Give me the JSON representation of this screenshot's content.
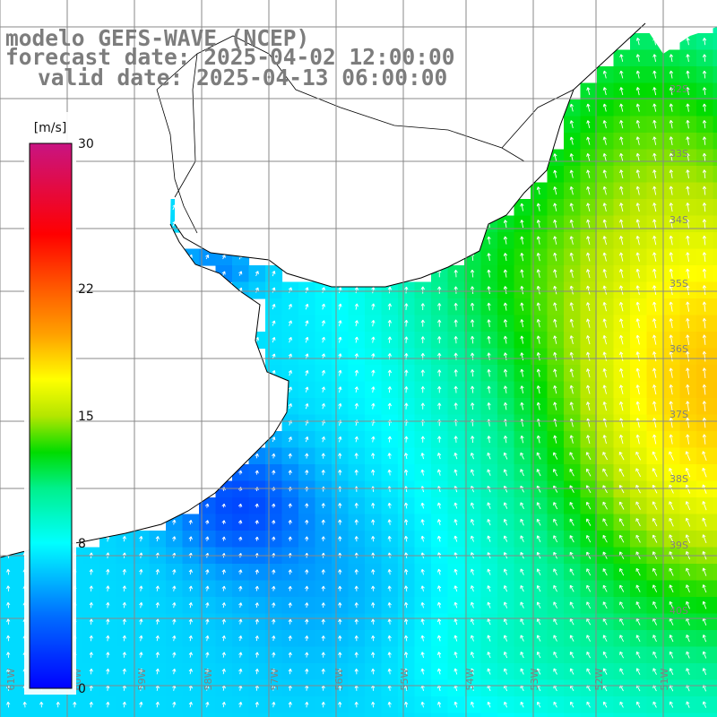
{
  "title": {
    "model": "modelo GEFS-WAVE (NCEP)",
    "forecast": "forecast date: 2025-04-02 12:00:00",
    "valid": "valid date: 2025-04-13 06:00:00"
  },
  "colorbar": {
    "unit": "[m/s]",
    "ticks": [
      "30",
      "22",
      "15",
      "8",
      "0"
    ],
    "tick_values": [
      30,
      22,
      15,
      8,
      0
    ],
    "colors": [
      "#c71585",
      "#ff0000",
      "#ff8c00",
      "#ffff00",
      "#00e000",
      "#00ffff",
      "#0000ff"
    ]
  },
  "lat_labels": [
    "32S",
    "33S",
    "34S",
    "35S",
    "36S",
    "37S",
    "38S",
    "39S",
    "40S"
  ],
  "lon_labels": [
    "61W",
    "60W",
    "59W",
    "58W",
    "57W",
    "56W",
    "55W",
    "54W",
    "53W",
    "52W",
    "51W"
  ],
  "field": {
    "variable": "wind speed",
    "units": "m/s",
    "range": [
      0,
      30
    ],
    "arrow_color": "#ffffff",
    "land_color": "#ffffff",
    "coast_color": "#000000",
    "grid_color": "#888888"
  }
}
